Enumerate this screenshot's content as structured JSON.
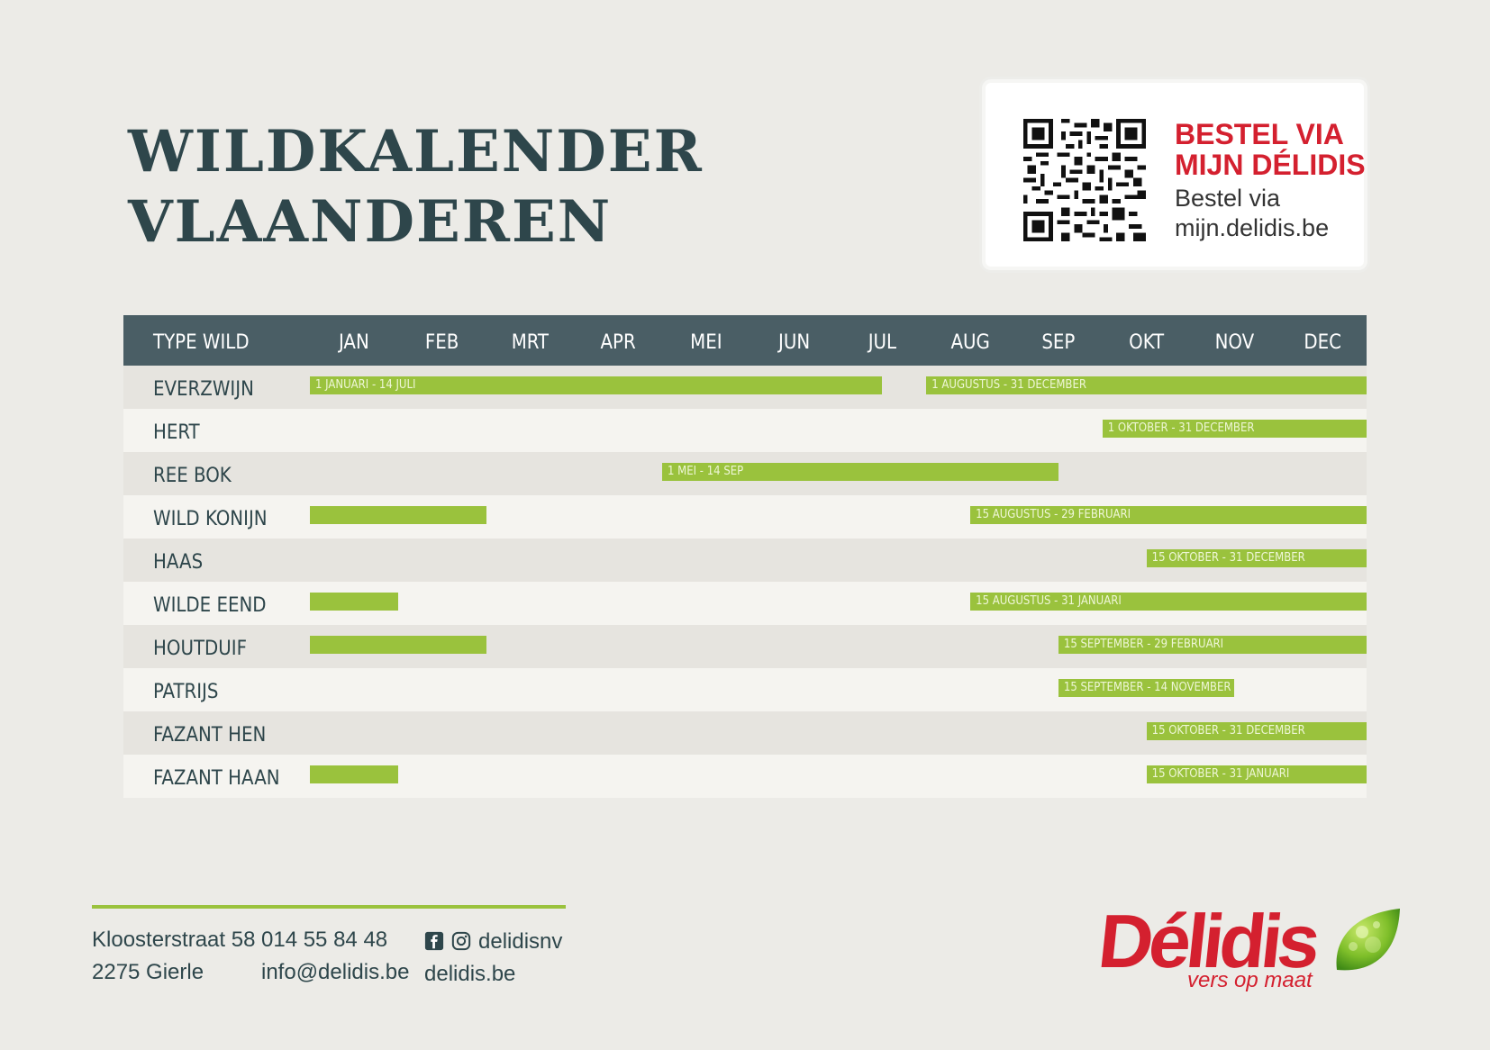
{
  "title": {
    "line1": "WILDKALENDER",
    "line2": "VLAANDEREN"
  },
  "order": {
    "heading_line1": "BESTEL VIA",
    "heading_line2": "MIJN DÉLIDIS",
    "sub_line1": "Bestel via",
    "sub_line2": "mijn.delidis.be"
  },
  "colors": {
    "header": "#4a5e65",
    "bar": "#9ac23d",
    "brand_red": "#d4202f",
    "title": "#2e464b"
  },
  "table": {
    "type_header": "TYPE WILD",
    "months": [
      "JAN",
      "FEB",
      "MRT",
      "APR",
      "MEI",
      "JUN",
      "JUL",
      "AUG",
      "SEP",
      "OKT",
      "NOV",
      "DEC"
    ],
    "rows": [
      {
        "label": "EVERZWIJN",
        "periods": [
          {
            "start": 1,
            "end": 7.5,
            "text": "1 JANUARI - 14 JULI"
          },
          {
            "start": 8,
            "end": 13,
            "text": "1 AUGUSTUS - 31 DECEMBER"
          }
        ]
      },
      {
        "label": "HERT",
        "periods": [
          {
            "start": 10,
            "end": 13,
            "text": "1 OKTOBER - 31 DECEMBER"
          }
        ]
      },
      {
        "label": "REE BOK",
        "periods": [
          {
            "start": 5,
            "end": 9.5,
            "text": "1 MEI - 14 SEP"
          }
        ]
      },
      {
        "label": "WILD KONIJN",
        "periods": [
          {
            "start": 1,
            "end": 3,
            "text": ""
          },
          {
            "start": 8.5,
            "end": 13,
            "text": "15 AUGUSTUS - 29 FEBRUARI"
          }
        ]
      },
      {
        "label": "HAAS",
        "periods": [
          {
            "start": 10.5,
            "end": 13,
            "text": "15 OKTOBER - 31 DECEMBER"
          }
        ]
      },
      {
        "label": "WILDE EEND",
        "periods": [
          {
            "start": 1,
            "end": 2,
            "text": ""
          },
          {
            "start": 8.5,
            "end": 13,
            "text": "15 AUGUSTUS - 31 JANUARI"
          }
        ]
      },
      {
        "label": "HOUTDUIF",
        "periods": [
          {
            "start": 1,
            "end": 3,
            "text": ""
          },
          {
            "start": 9.5,
            "end": 13,
            "text": "15 SEPTEMBER - 29 FEBRUARI"
          }
        ]
      },
      {
        "label": "PATRIJS",
        "periods": [
          {
            "start": 9.5,
            "end": 11.5,
            "text": "15 SEPTEMBER - 14 NOVEMBER"
          }
        ]
      },
      {
        "label": "FAZANT HEN",
        "periods": [
          {
            "start": 10.5,
            "end": 13,
            "text": "15 OKTOBER - 31 DECEMBER"
          }
        ]
      },
      {
        "label": "FAZANT HAAN",
        "periods": [
          {
            "start": 1,
            "end": 2,
            "text": ""
          },
          {
            "start": 10.5,
            "end": 13,
            "text": "15 OKTOBER - 31 JANUARI"
          }
        ]
      }
    ]
  },
  "footer": {
    "address_line1": "Kloosterstraat 58",
    "address_line2": "2275 Gierle",
    "phone": "014 55 84 48",
    "email": "info@delidis.be",
    "social_handle": "delidisnv",
    "website": "delidis.be",
    "social_icons": [
      "facebook-icon",
      "instagram-icon"
    ]
  },
  "logo": {
    "word": "Délidis",
    "tagline": "vers op maat"
  }
}
